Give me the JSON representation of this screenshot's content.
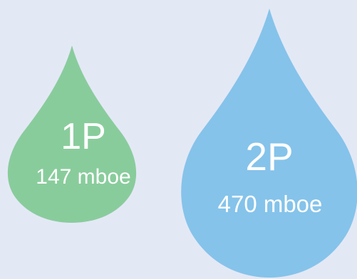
{
  "drops": [
    {
      "code": "1P",
      "amount": "147 mboe",
      "color": "#89cc9c"
    },
    {
      "code": "2P",
      "amount": "470 mboe",
      "color": "#85c3ea"
    }
  ],
  "background_color": "#e3e8f5",
  "text_color": "#ffffff"
}
